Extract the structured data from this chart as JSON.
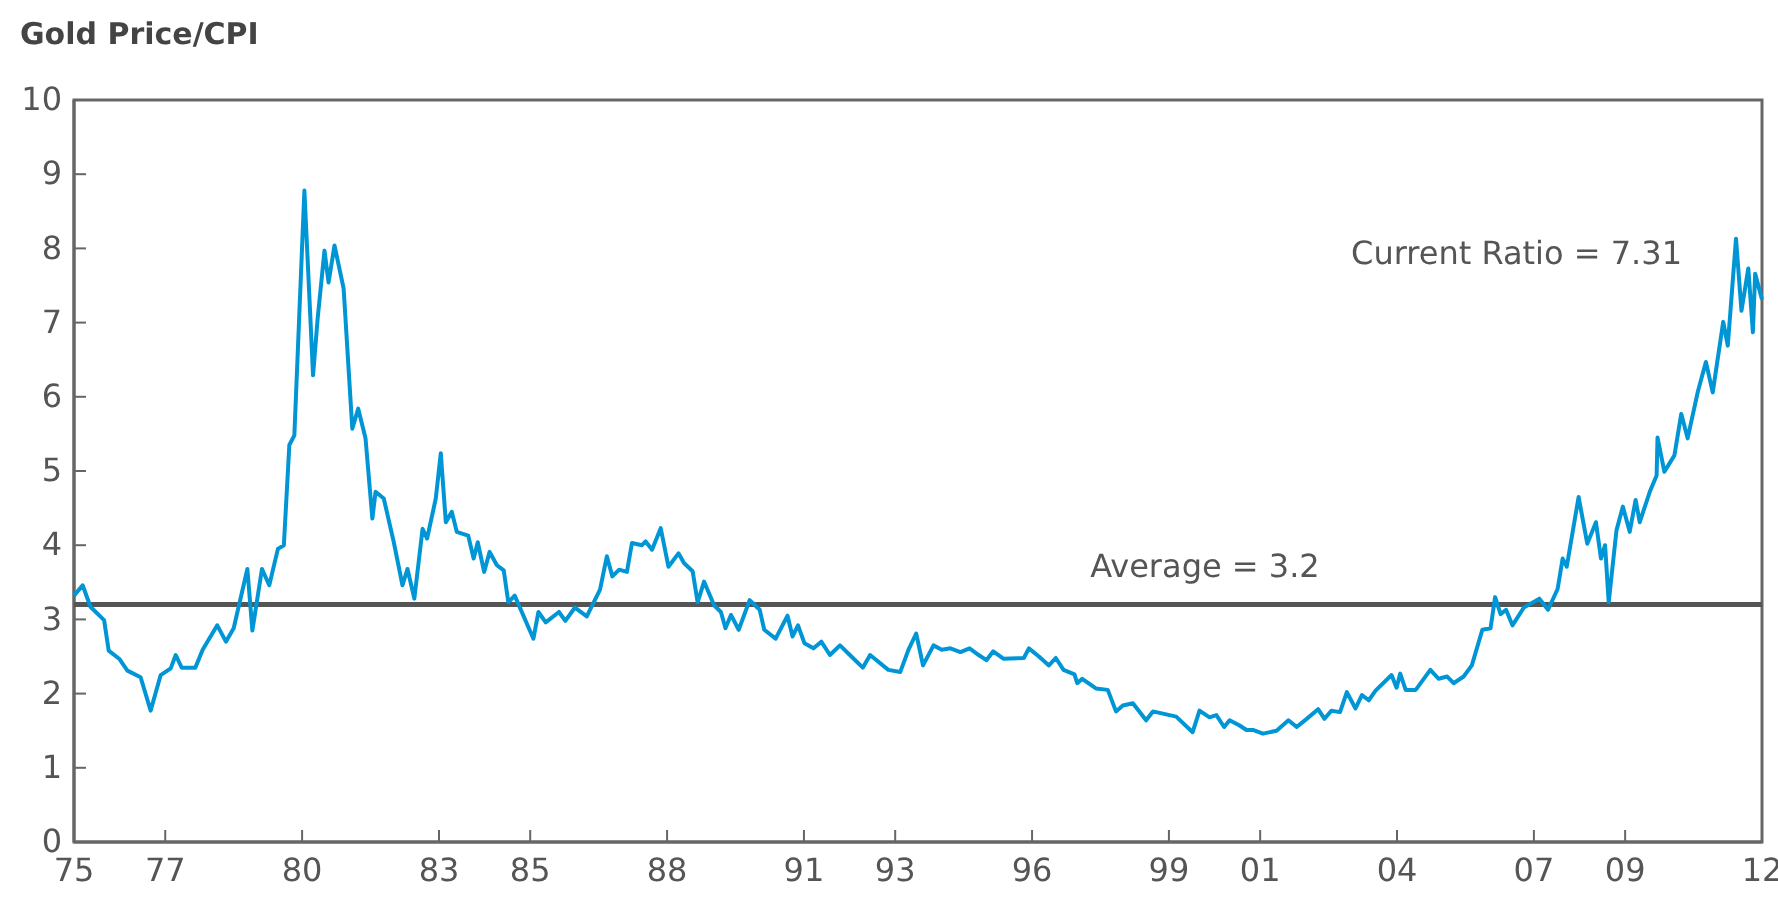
{
  "chart_data": {
    "type": "line",
    "title": "Gold Price/CPI",
    "xlim": [
      1975,
      2012
    ],
    "xticks": [
      {
        "value": 1975,
        "label": "75"
      },
      {
        "value": 1977,
        "label": "77"
      },
      {
        "value": 1980,
        "label": "80"
      },
      {
        "value": 1983,
        "label": "83"
      },
      {
        "value": 1985,
        "label": "85"
      },
      {
        "value": 1988,
        "label": "88"
      },
      {
        "value": 1991,
        "label": "91"
      },
      {
        "value": 1993,
        "label": "93"
      },
      {
        "value": 1996,
        "label": "96"
      },
      {
        "value": 1999,
        "label": "99"
      },
      {
        "value": 2001,
        "label": "01"
      },
      {
        "value": 2004,
        "label": "04"
      },
      {
        "value": 2007,
        "label": "07"
      },
      {
        "value": 2009,
        "label": "09"
      },
      {
        "value": 2012,
        "label": "12"
      }
    ],
    "ylim": [
      0,
      10
    ],
    "yticks": [
      0,
      1,
      2,
      3,
      4,
      5,
      6,
      7,
      8,
      9,
      10
    ],
    "grid": false,
    "marker": "none",
    "line_style": "solid",
    "ref_lines": [
      {
        "axis": "y",
        "value": 3.2,
        "label": "Average = 3.2",
        "color": "#555555"
      }
    ],
    "annotations": [
      {
        "text": "Current Ratio = 7.31",
        "x": 2012,
        "y": 7.31
      }
    ],
    "series": [
      {
        "color": "#0096d6",
        "x": [
          1975.0,
          1975.19,
          1975.36,
          1975.66,
          1975.76,
          1975.99,
          1976.17,
          1976.46,
          1976.68,
          1976.9,
          1977.12,
          1977.23,
          1977.36,
          1977.66,
          1977.82,
          1978.14,
          1978.33,
          1978.5,
          1978.8,
          1978.91,
          1979.12,
          1979.28,
          1979.47,
          1979.6,
          1979.72,
          1979.83,
          1980.05,
          1980.24,
          1980.34,
          1980.49,
          1980.58,
          1980.71,
          1980.91,
          1981.1,
          1981.23,
          1981.39,
          1981.54,
          1981.61,
          1981.79,
          1982.01,
          1982.2,
          1982.31,
          1982.46,
          1982.64,
          1982.74,
          1982.93,
          1983.04,
          1983.15,
          1983.28,
          1983.39,
          1983.64,
          1983.76,
          1983.85,
          1983.99,
          1984.11,
          1984.27,
          1984.42,
          1984.52,
          1984.66,
          1985.07,
          1985.18,
          1985.34,
          1985.63,
          1985.77,
          1985.98,
          1986.24,
          1986.53,
          1986.68,
          1986.8,
          1986.95,
          1987.12,
          1987.23,
          1987.45,
          1987.53,
          1987.67,
          1987.86,
          1988.03,
          1988.25,
          1988.37,
          1988.56,
          1988.67,
          1988.81,
          1989.03,
          1989.18,
          1989.28,
          1989.4,
          1989.57,
          1989.81,
          1990.03,
          1990.13,
          1990.38,
          1990.64,
          1990.75,
          1990.87,
          1991.01,
          1991.21,
          1991.38,
          1991.57,
          1991.79,
          1992.04,
          1992.29,
          1992.45,
          1992.85,
          1993.11,
          1993.29,
          1993.46,
          1993.61,
          1993.84,
          1994.02,
          1994.21,
          1994.43,
          1994.63,
          1994.83,
          1995.0,
          1995.15,
          1995.37,
          1995.82,
          1995.93,
          1996.15,
          1996.37,
          1996.52,
          1996.69,
          1996.93,
          1996.99,
          1997.1,
          1997.4,
          1997.66,
          1997.84,
          1997.99,
          1998.21,
          1998.5,
          1998.65,
          1998.94,
          1999.16,
          1999.52,
          1999.67,
          1999.89,
          2000.04,
          2000.21,
          2000.33,
          2000.55,
          2000.7,
          2000.84,
          2001.06,
          2001.36,
          2001.62,
          2001.8,
          2002.02,
          2002.27,
          2002.41,
          2002.56,
          2002.75,
          2002.9,
          2003.09,
          2003.23,
          2003.38,
          2003.53,
          2003.88,
          2003.99,
          2004.07,
          2004.19,
          2004.41,
          2004.73,
          2004.91,
          2005.1,
          2005.24,
          2005.46,
          2005.64,
          2005.87,
          2006.05,
          2006.15,
          2006.27,
          2006.39,
          2006.53,
          2006.78,
          2007.12,
          2007.31,
          2007.52,
          2007.63,
          2007.72,
          2007.98,
          2008.17,
          2008.36,
          2008.47,
          2008.56,
          2008.64,
          2008.81,
          2008.95,
          2009.1,
          2009.23,
          2009.32,
          2009.54,
          2009.69,
          2009.71,
          2009.86,
          2010.08,
          2010.23,
          2010.37,
          2010.59,
          2010.77,
          2010.92,
          2011.15,
          2011.25,
          2011.43,
          2011.55,
          2011.7,
          2011.8,
          2011.85,
          2012
        ],
        "values": [
          3.32,
          3.46,
          3.17,
          2.99,
          2.58,
          2.47,
          2.31,
          2.22,
          1.77,
          2.25,
          2.34,
          2.52,
          2.35,
          2.35,
          2.59,
          2.92,
          2.7,
          2.88,
          3.68,
          2.85,
          3.68,
          3.46,
          3.95,
          4.0,
          5.35,
          5.48,
          8.78,
          6.29,
          7.05,
          7.97,
          7.54,
          8.04,
          7.46,
          5.57,
          5.84,
          5.44,
          4.36,
          4.72,
          4.63,
          4.04,
          3.46,
          3.68,
          3.28,
          4.22,
          4.09,
          4.63,
          5.24,
          4.31,
          4.45,
          4.18,
          4.13,
          3.82,
          4.04,
          3.64,
          3.91,
          3.73,
          3.66,
          3.23,
          3.32,
          2.74,
          3.1,
          2.96,
          3.1,
          2.98,
          3.16,
          3.04,
          3.4,
          3.85,
          3.58,
          3.67,
          3.64,
          4.03,
          4.0,
          4.05,
          3.94,
          4.23,
          3.71,
          3.89,
          3.76,
          3.65,
          3.23,
          3.51,
          3.19,
          3.1,
          2.88,
          3.06,
          2.86,
          3.26,
          3.13,
          2.86,
          2.74,
          3.05,
          2.77,
          2.92,
          2.68,
          2.61,
          2.7,
          2.52,
          2.65,
          2.5,
          2.35,
          2.52,
          2.32,
          2.29,
          2.59,
          2.81,
          2.38,
          2.65,
          2.59,
          2.61,
          2.56,
          2.61,
          2.52,
          2.45,
          2.57,
          2.47,
          2.48,
          2.61,
          2.5,
          2.38,
          2.48,
          2.32,
          2.26,
          2.14,
          2.2,
          2.07,
          2.05,
          1.76,
          1.84,
          1.87,
          1.64,
          1.76,
          1.72,
          1.69,
          1.48,
          1.77,
          1.68,
          1.71,
          1.55,
          1.64,
          1.57,
          1.51,
          1.51,
          1.46,
          1.5,
          1.64,
          1.55,
          1.66,
          1.79,
          1.66,
          1.77,
          1.75,
          2.02,
          1.8,
          1.98,
          1.91,
          2.04,
          2.25,
          2.08,
          2.27,
          2.05,
          2.05,
          2.32,
          2.2,
          2.23,
          2.14,
          2.23,
          2.38,
          2.86,
          2.88,
          3.3,
          3.07,
          3.13,
          2.92,
          3.16,
          3.28,
          3.13,
          3.41,
          3.82,
          3.71,
          4.65,
          4.02,
          4.31,
          3.82,
          4.0,
          3.23,
          4.2,
          4.52,
          4.18,
          4.61,
          4.31,
          4.72,
          4.94,
          5.45,
          4.99,
          5.21,
          5.77,
          5.44,
          6.06,
          6.47,
          6.06,
          7.01,
          6.69,
          8.13,
          7.16,
          7.73,
          6.87,
          7.66,
          7.31
        ]
      }
    ]
  }
}
